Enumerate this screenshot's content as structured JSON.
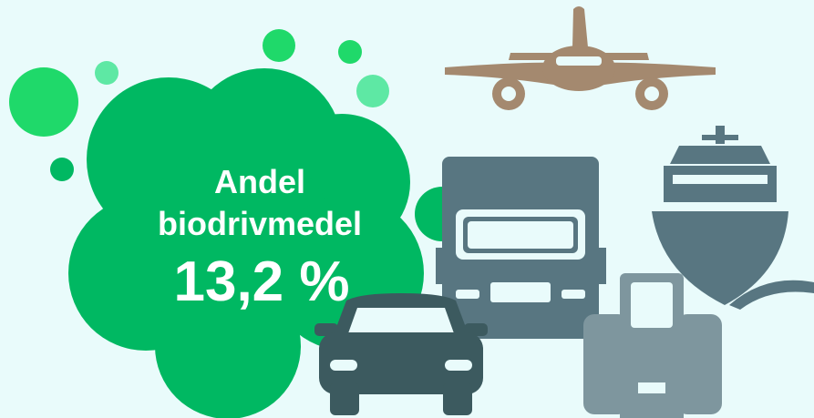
{
  "heading": [
    "Andel",
    "biodrivmedel"
  ],
  "value_text": "13,2 %"
}
